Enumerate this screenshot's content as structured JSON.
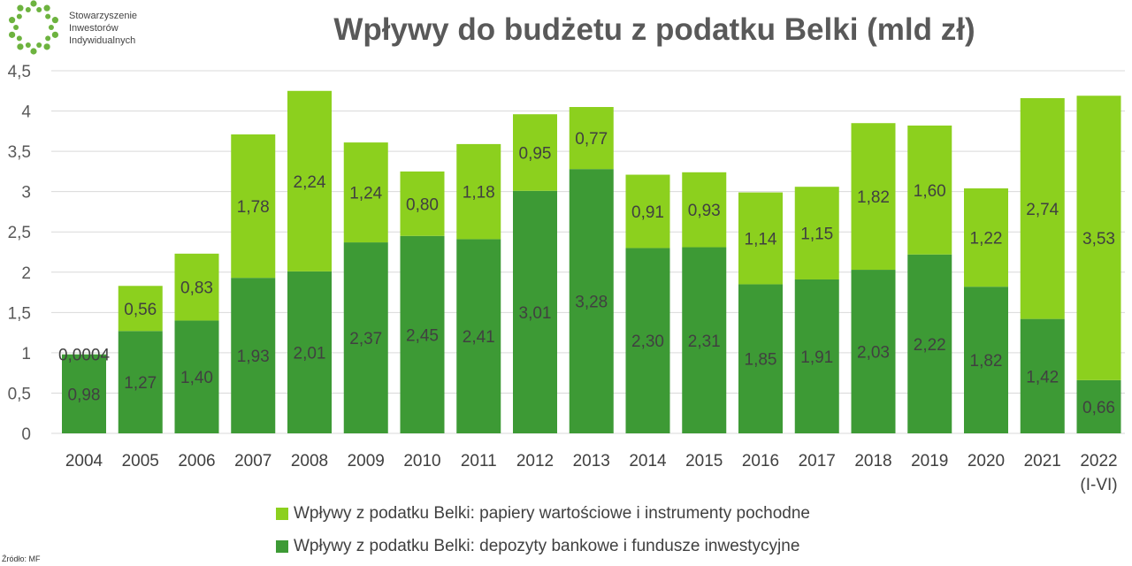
{
  "logo": {
    "lines": [
      "Stowarzyszenie",
      "Inwestorów",
      "Indywidualnych"
    ]
  },
  "source": "Źródło: MF",
  "chart_data": {
    "type": "bar",
    "stacked": true,
    "title": "Wpływy do budżetu z podatku Belki (mld zł)",
    "categories": [
      "2004",
      "2005",
      "2006",
      "2007",
      "2008",
      "2009",
      "2010",
      "2011",
      "2012",
      "2013",
      "2014",
      "2015",
      "2016",
      "2017",
      "2018",
      "2019",
      "2020",
      "2021",
      "2022 (I-VI)"
    ],
    "series": [
      {
        "name": "Wpływy z podatku Belki: depozyty bankowe i fundusze inwestycyjne",
        "color": "#3d9a35",
        "values": [
          0.98,
          1.27,
          1.4,
          1.93,
          2.01,
          2.37,
          2.45,
          2.41,
          3.01,
          3.28,
          2.3,
          2.31,
          1.85,
          1.91,
          2.03,
          2.22,
          1.82,
          1.42,
          0.66
        ],
        "labels": [
          "0,98",
          "1,27",
          "1,40",
          "1,93",
          "2,01",
          "2,37",
          "2,45",
          "2,41",
          "3,01",
          "3,28",
          "2,30",
          "2,31",
          "1,85",
          "1,91",
          "2,03",
          "2,22",
          "1,82",
          "1,42",
          "0,66"
        ]
      },
      {
        "name": "Wpływy z podatku Belki: papiery wartościowe i instrumenty pochodne",
        "color": "#8cd01e",
        "values": [
          0.0004,
          0.56,
          0.83,
          1.78,
          2.24,
          1.24,
          0.8,
          1.18,
          0.95,
          0.77,
          0.91,
          0.93,
          1.14,
          1.15,
          1.82,
          1.6,
          1.22,
          2.74,
          3.53
        ],
        "labels": [
          "0,0004",
          "0,56",
          "0,83",
          "1,78",
          "2,24",
          "1,24",
          "0,80",
          "1,18",
          "0,95",
          "0,77",
          "0,91",
          "0,93",
          "1,14",
          "1,15",
          "1,82",
          "1,60",
          "1,22",
          "2,74",
          "3,53"
        ]
      }
    ],
    "ylim": [
      0,
      4.5
    ],
    "yticks": [
      "0",
      "0,5",
      "1",
      "1,5",
      "2",
      "2,5",
      "3",
      "3,5",
      "4",
      "4,5"
    ],
    "grid": true,
    "legend_position": "bottom"
  }
}
